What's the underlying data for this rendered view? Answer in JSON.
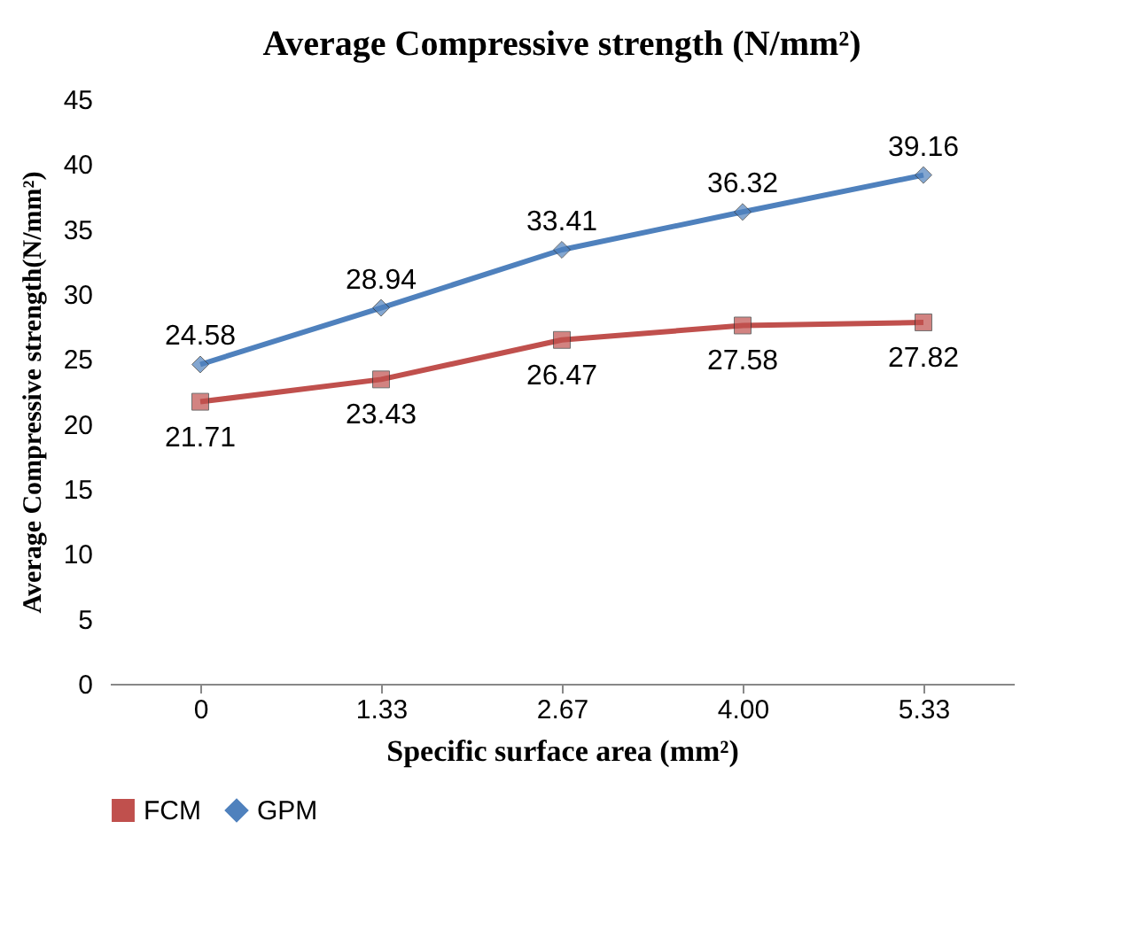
{
  "chart_data": {
    "type": "line",
    "title": "Average Compressive strength (N/mm²)",
    "xlabel": "Specific surface area (mm²)",
    "ylabel": "Average Compressive strength(N/mm²)",
    "categories": [
      "0",
      "1.33",
      "2.67",
      "4.00",
      "5.33"
    ],
    "series": [
      {
        "name": "FCM",
        "color": "#c0504d",
        "marker": "square",
        "values": [
          21.71,
          23.43,
          26.47,
          27.58,
          27.82
        ]
      },
      {
        "name": "GPM",
        "color": "#4f81bd",
        "marker": "diamond",
        "values": [
          24.58,
          28.94,
          33.41,
          36.32,
          39.16
        ]
      }
    ],
    "ylim": [
      0,
      45
    ],
    "yticks": [
      0,
      5,
      10,
      15,
      20,
      25,
      30,
      35,
      40,
      45
    ],
    "grid": false,
    "legend": "bottom",
    "data_labels": true
  }
}
